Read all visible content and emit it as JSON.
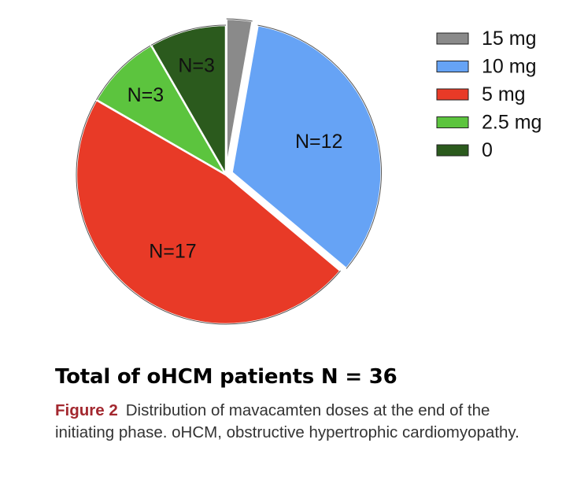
{
  "chart_data": {
    "type": "pie",
    "slices": [
      {
        "name": "15 mg",
        "value": 1,
        "label": "",
        "color": "#8a8a8a",
        "exploded": true
      },
      {
        "name": "10 mg",
        "value": 12,
        "label": "N=12",
        "color": "#66a3f5",
        "exploded": true
      },
      {
        "name": "5 mg",
        "value": 17,
        "label": "N=17",
        "color": "#e83a27",
        "exploded": false
      },
      {
        "name": "2.5 mg",
        "value": 3,
        "label": "N=3",
        "color": "#5cc43e",
        "exploded": false
      },
      {
        "name": "0",
        "value": 3,
        "label": "N=3",
        "color": "#2b5a1d",
        "exploded": false
      }
    ],
    "legend": {
      "position": "top-right",
      "entries": [
        "15 mg",
        "10 mg",
        "5 mg",
        "2.5 mg",
        "0"
      ]
    }
  },
  "total_heading": "Total of oHCM patients N = 36",
  "caption": {
    "figure_label": "Figure 2",
    "text": "Distribution of mavacamten doses at the end of the initiating phase. oHCM, obstructive hypertrophic cardiomyopathy."
  }
}
